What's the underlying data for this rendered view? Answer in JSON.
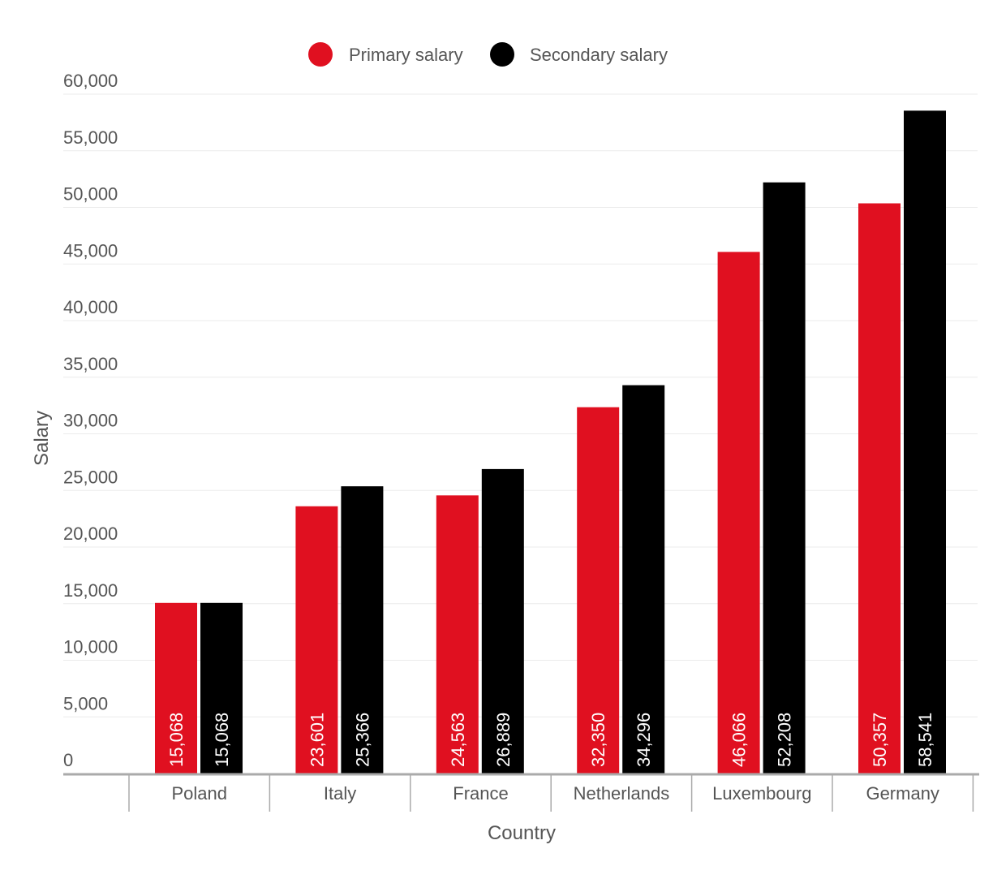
{
  "chart_data": {
    "type": "bar",
    "title": "",
    "xlabel": "Country",
    "ylabel": "Salary",
    "ylim": [
      0,
      60000
    ],
    "yticks": [
      0,
      5000,
      10000,
      15000,
      20000,
      25000,
      30000,
      35000,
      40000,
      45000,
      50000,
      55000,
      60000
    ],
    "ytick_labels": [
      "0",
      "5,000",
      "10,000",
      "15,000",
      "20,000",
      "25,000",
      "30,000",
      "35,000",
      "40,000",
      "45,000",
      "50,000",
      "55,000",
      "60,000"
    ],
    "grid": true,
    "legend_position": "top-center",
    "categories": [
      "Poland",
      "Italy",
      "France",
      "Netherlands",
      "Luxembourg",
      "Germany"
    ],
    "series": [
      {
        "name": "Primary salary",
        "color": "#e01020",
        "values": [
          15068,
          23601,
          24563,
          32350,
          46066,
          50357
        ],
        "labels": [
          "15,068",
          "23,601",
          "24,563",
          "32,350",
          "46,066",
          "50,357"
        ]
      },
      {
        "name": "Secondary salary",
        "color": "#000000",
        "values": [
          15068,
          25366,
          26889,
          34296,
          52208,
          58541
        ],
        "labels": [
          "15,068",
          "25,366",
          "26,889",
          "34,296",
          "52,208",
          "58,541"
        ]
      }
    ]
  }
}
